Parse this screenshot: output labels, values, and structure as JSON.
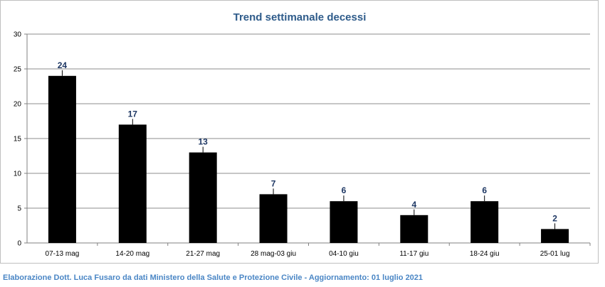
{
  "chart_data": {
    "type": "bar",
    "title": "Trend settimanale decessi",
    "categories": [
      "07-13 mag",
      "14-20 mag",
      "21-27 mag",
      "28 mag-03 giu",
      "04-10 giu",
      "11-17 giu",
      "18-24 giu",
      "25-01 lug"
    ],
    "values": [
      24,
      17,
      13,
      7,
      6,
      4,
      6,
      2
    ],
    "ylim": [
      0,
      30
    ],
    "yticks": [
      0,
      5,
      10,
      15,
      20,
      25,
      30
    ],
    "xlabel": "",
    "ylabel": "",
    "grid": true,
    "legend": "none",
    "bar_color": "#000000",
    "label_color": "#1f3864"
  },
  "footer": "Elaborazione Dott. Luca Fusaro da dati Ministero della Salute e Protezione Civile - Aggiornamento: 01 luglio 2021"
}
